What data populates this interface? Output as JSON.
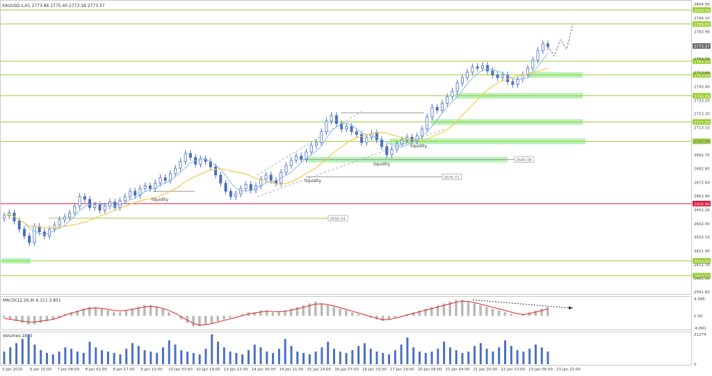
{
  "header": {
    "symbol": "XAUUSD.s",
    "timeframe": "H1",
    "ohlc": "2773.86 2775.40 2773.18 2773.37",
    "title": "XAUUSD.s,H1  2773.86 2775.40 2773.18 2773.37"
  },
  "chart_data": [
    {
      "type": "line",
      "panel": "price",
      "title": "XAUUSD.s,H1  2773.86 2775.40 2773.18 2773.37",
      "yaxis_ticks": [
        "2804.30",
        "2794.10",
        "2783.90",
        "2773.37",
        "2764.00",
        "2753.80",
        "2743.40",
        "2733.20",
        "2723.30",
        "2713.10",
        "2702.90",
        "2692.70",
        "2682.80",
        "2672.60",
        "2662.40",
        "2652.20",
        "2642.00",
        "2632.10",
        "2621.90",
        "2611.70",
        "2601.50",
        "2591.60"
      ],
      "ylim": [
        2591.6,
        2804.3
      ],
      "current_price": "2773.37",
      "close_series": [
        2648,
        2650,
        2644,
        2638,
        2633,
        2628,
        2640,
        2636,
        2633,
        2638,
        2641,
        2645,
        2647,
        2650,
        2655,
        2662,
        2660,
        2654,
        2656,
        2652,
        2655,
        2658,
        2654,
        2659,
        2662,
        2666,
        2663,
        2668,
        2670,
        2668,
        2672,
        2676,
        2674,
        2679,
        2683,
        2688,
        2694,
        2691,
        2686,
        2690,
        2688,
        2684,
        2678,
        2672,
        2666,
        2662,
        2664,
        2668,
        2671,
        2667,
        2670,
        2675,
        2678,
        2674,
        2672,
        2680,
        2685,
        2689,
        2692,
        2690,
        2695,
        2700,
        2702,
        2710,
        2718,
        2722,
        2716,
        2712,
        2714,
        2710,
        2708,
        2702,
        2706,
        2709,
        2704,
        2699,
        2693,
        2697,
        2701,
        2704,
        2706,
        2703,
        2707,
        2712,
        2721,
        2728,
        2726,
        2731,
        2736,
        2740,
        2746,
        2750,
        2754,
        2758,
        2757,
        2759,
        2755,
        2752,
        2750,
        2752,
        2747,
        2745,
        2749,
        2752,
        2757,
        2763,
        2770,
        2775,
        2773
      ],
      "projection": [
        2773.4,
        2766,
        2778,
        2771,
        2790
      ],
      "horizontal_levels": [
        {
          "label": "2800.00",
          "value": 2800.0,
          "color": "#9acd32"
        },
        {
          "label": "2789.65",
          "value": 2789.65,
          "color": "#9acd32"
        },
        {
          "label": "2762.15",
          "value": 2762.15,
          "color": "#9acd32"
        },
        {
          "label": "2752.00",
          "value": 2752.0,
          "color": "#9acd32"
        },
        {
          "label": "2736.59",
          "value": 2736.59,
          "color": "#9acd32"
        },
        {
          "label": "2717.23",
          "value": 2717.23,
          "color": "#9acd32"
        },
        {
          "label": "2702.90",
          "value": 2702.9,
          "color": "#9acd32"
        },
        {
          "label": "2656.86",
          "value": 2656.86,
          "color": "#dc143c"
        },
        {
          "label": "2614.55",
          "value": 2614.55,
          "color": "#9acd32"
        },
        {
          "label": "2603.53",
          "value": 2603.53,
          "color": "#9acd32"
        }
      ],
      "segment_levels": [
        {
          "label": "2689.38",
          "value": 2689.38
        },
        {
          "label": "2676.71",
          "value": 2676.71
        },
        {
          "label": "2646.04",
          "value": 2646.04
        }
      ],
      "annotations": [
        "liquidity",
        "liquidity",
        "liquidity",
        "liquidity"
      ],
      "x_tick_labels": [
        "3 Jan 2025",
        "6 Jan 15:00",
        "7 Jan 08:00",
        "8 Jan 01:00",
        "8 Jan 17:00",
        "9 Jan 10:00",
        "10 Jan 03:00",
        "10 Jan 19:00",
        "13 Jan 12:00",
        "14 Jan 05:00",
        "14 Jan 21:00",
        "15 Jan 14:00",
        "16 Jan 07:00",
        "16 Jan 23:00",
        "17 Jan 16:00",
        "20 Jan 09:00",
        "21 Jan 04:00",
        "21 Jan 20:00",
        "22 Jan 13:00",
        "23 Jan 06:00",
        "23 Jan 22:00"
      ],
      "colors": {
        "candles": "#4a6fc4",
        "ma_fast": "#87b8e6",
        "ma_slow": "#f2c94c",
        "zones": "#b6f2b6",
        "level_line": "#9acd32",
        "red_level": "#dc143c"
      }
    },
    {
      "type": "bar",
      "panel": "macd",
      "title": "MACD(12,26,9) 6.111 3.851",
      "yaxis_ticks": [
        "9.586",
        "0.00",
        "-6.891"
      ],
      "ylim": [
        -6.891,
        9.586
      ],
      "histogram": [
        -1,
        -2,
        -3,
        -4,
        -5,
        -5,
        -4,
        -3,
        -2,
        -1,
        1,
        2,
        3,
        4,
        5,
        5,
        4,
        3,
        2,
        2,
        3,
        4,
        5,
        6,
        6,
        5,
        4,
        2,
        0,
        -2,
        -4,
        -6,
        -6,
        -5,
        -4,
        -3,
        -2,
        -1,
        0,
        1,
        2,
        2,
        3,
        3,
        2,
        2,
        3,
        4,
        5,
        6,
        7,
        8,
        7,
        6,
        5,
        4,
        3,
        2,
        1,
        0,
        -1,
        -2,
        -3,
        -2,
        -1,
        0,
        1,
        2,
        3,
        4,
        5,
        6,
        7,
        8,
        9,
        9,
        8,
        7,
        6,
        5,
        4,
        3,
        2,
        1,
        0,
        1,
        2,
        3,
        4,
        5
      ],
      "signal": [
        -1.5,
        -2,
        -2.5,
        -3,
        -3.5,
        -3.5,
        -3,
        -2.5,
        -2,
        -1,
        0.5,
        1.5,
        2.5,
        3.5,
        4.2,
        4.5,
        4.2,
        3.6,
        3,
        2.8,
        3.1,
        3.7,
        4.4,
        5,
        5.3,
        5,
        4.2,
        3,
        1.4,
        -0.5,
        -2.5,
        -4.3,
        -5.2,
        -5,
        -4.3,
        -3.5,
        -2.6,
        -1.7,
        -0.8,
        0.1,
        1,
        1.6,
        2.2,
        2.6,
        2.5,
        2.3,
        2.6,
        3.2,
        4,
        4.8,
        5.8,
        6.6,
        6.8,
        6.3,
        5.5,
        4.6,
        3.6,
        2.6,
        1.6,
        0.6,
        -0.4,
        -1.4,
        -2.2,
        -2.1,
        -1.3,
        -0.4,
        0.5,
        1.4,
        2.3,
        3.2,
        4.1,
        5,
        5.9,
        6.8,
        7.7,
        8.3,
        8.1,
        7.4,
        6.6,
        5.7,
        4.8,
        3.9,
        3,
        2.1,
        1.2,
        0.8,
        1.3,
        2.1,
        3,
        3.9
      ],
      "divergence_note": "arrow"
    },
    {
      "type": "bar",
      "panel": "volume",
      "title": "Volumes 1810",
      "yaxis_ticks": [
        "21274",
        "0"
      ],
      "ylim": [
        0,
        21274
      ],
      "values": [
        9000,
        12000,
        15000,
        18000,
        21000,
        14000,
        10000,
        8000,
        7000,
        9000,
        12000,
        11000,
        9000,
        8000,
        16000,
        12000,
        10000,
        9000,
        8000,
        7000,
        11000,
        15000,
        13000,
        10000,
        9000,
        8000,
        12000,
        17000,
        14000,
        10000,
        9000,
        8000,
        7000,
        11000,
        21274,
        16000,
        12000,
        9000,
        8000,
        7000,
        10000,
        14000,
        12000,
        9000,
        8000,
        11000,
        18000,
        13000,
        9000,
        8000,
        7000,
        9000,
        12000,
        16000,
        11000,
        9000,
        8000,
        10000,
        13000,
        15000,
        11000,
        9000,
        8000,
        7000,
        10000,
        14000,
        19000,
        12000,
        9000,
        8000,
        9000,
        11000,
        16000,
        12000,
        10000,
        8000,
        9000,
        13000,
        15000,
        11000,
        9000,
        12000,
        17000,
        13000,
        10000,
        9000,
        11000,
        14000,
        12000,
        9000
      ]
    }
  ]
}
